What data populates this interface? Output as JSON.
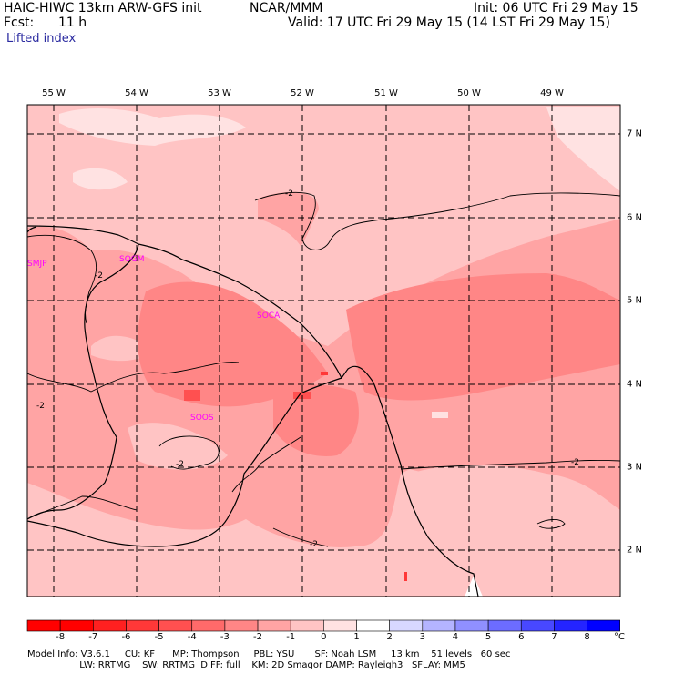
{
  "header": {
    "model_title": "HAIC-HIWC 13km ARW-GFS init",
    "org": "NCAR/MMM",
    "init": "Init: 06 UTC Fri 29 May 15",
    "fcst_label": "Fcst:",
    "fcst_value": "11 h",
    "valid": "Valid: 17 UTC Fri 29 May 15 (14 LST Fri 29 May 15)",
    "field": "Lifted index"
  },
  "map": {
    "lon_labels": [
      "55 W",
      "54 W",
      "53 W",
      "52 W",
      "51 W",
      "50 W",
      "49 W"
    ],
    "lat_labels": [
      "7 N",
      "6 N",
      "5 N",
      "4 N",
      "3 N",
      "2 N"
    ],
    "stations": [
      "SMJP",
      "SOGM",
      "SOCA",
      "SOOS"
    ],
    "contour_labels": [
      "-2",
      "-2",
      "-2",
      "-2",
      "-2",
      "-2",
      "-2"
    ]
  },
  "colorbar": {
    "labels": [
      "-8",
      "-7",
      "-6",
      "-5",
      "-4",
      "-3",
      "-2",
      "-1",
      "0",
      "1",
      "2",
      "3",
      "4",
      "5",
      "6",
      "7",
      "8"
    ],
    "unit": "°C",
    "colors": [
      "#ff0000",
      "#ff2020",
      "#ff3838",
      "#ff5050",
      "#ff6a6a",
      "#ff8686",
      "#ffa4a4",
      "#ffc4c4",
      "#ffe2e2",
      "#ffffff",
      "#d8d8ff",
      "#b4b4ff",
      "#9090ff",
      "#6c6cff",
      "#4848ff",
      "#2424ff",
      "#0000ff"
    ]
  },
  "footer": {
    "line1": "Model Info: V3.6.1     CU: KF      MP: Thompson     PBL: YSU       SF: Noah LSM     13 km    51 levels   60 sec",
    "line2": "                  LW: RRTMG    SW: RRTMG  DIFF: full    KM: 2D Smagor DAMP: Rayleigh3   SFLAY: MM5"
  }
}
